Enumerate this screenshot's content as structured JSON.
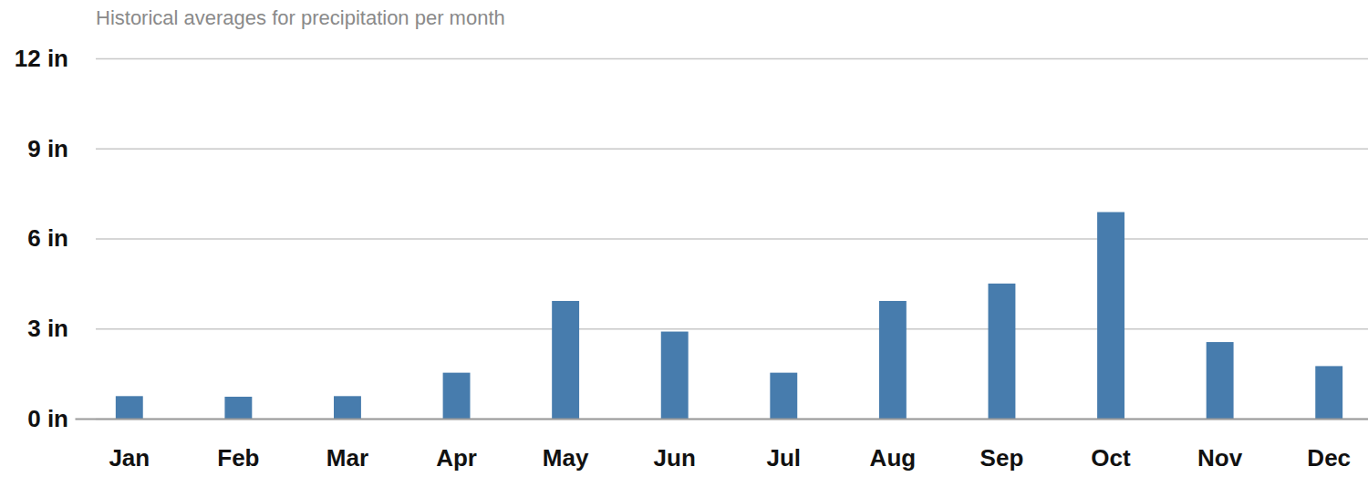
{
  "chart_data": {
    "type": "bar",
    "title": "Historical averages for precipitation per month",
    "categories": [
      "Jan",
      "Feb",
      "Mar",
      "Apr",
      "May",
      "Jun",
      "Jul",
      "Aug",
      "Sep",
      "Oct",
      "Nov",
      "Dec"
    ],
    "values": [
      0.75,
      0.73,
      0.75,
      1.53,
      3.92,
      2.9,
      1.53,
      3.92,
      4.5,
      6.88,
      2.55,
      1.75
    ],
    "color": "#477cad",
    "ylim": [
      0,
      12
    ],
    "yticks": [
      {
        "value": 0,
        "label": "0 in"
      },
      {
        "value": 3,
        "label": "3 in"
      },
      {
        "value": 6,
        "label": "6 in"
      },
      {
        "value": 9,
        "label": "9 in"
      },
      {
        "value": 12,
        "label": "12 in"
      }
    ],
    "grid": true
  }
}
